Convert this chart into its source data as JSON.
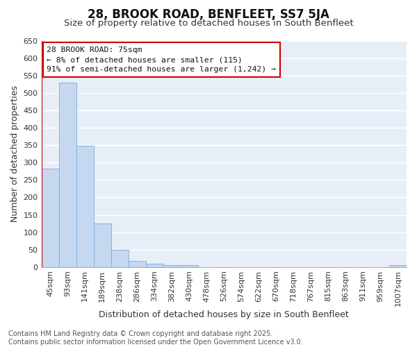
{
  "title": "28, BROOK ROAD, BENFLEET, SS7 5JA",
  "subtitle": "Size of property relative to detached houses in South Benfleet",
  "xlabel": "Distribution of detached houses by size in South Benfleet",
  "ylabel": "Number of detached properties",
  "categories": [
    "45sqm",
    "93sqm",
    "141sqm",
    "189sqm",
    "238sqm",
    "286sqm",
    "334sqm",
    "382sqm",
    "430sqm",
    "478sqm",
    "526sqm",
    "574sqm",
    "622sqm",
    "670sqm",
    "718sqm",
    "767sqm",
    "815sqm",
    "863sqm",
    "911sqm",
    "959sqm",
    "1007sqm"
  ],
  "values": [
    282,
    530,
    348,
    125,
    50,
    18,
    10,
    5,
    5,
    0,
    0,
    0,
    0,
    0,
    0,
    0,
    0,
    0,
    0,
    0,
    5
  ],
  "bar_color": "#c5d8f0",
  "bar_edge_color": "#7aabdc",
  "highlight_color": "#cc0000",
  "annotation_text": "28 BROOK ROAD: 75sqm\n← 8% of detached houses are smaller (115)\n91% of semi-detached houses are larger (1,242) →",
  "ylim_max": 650,
  "yticks": [
    0,
    50,
    100,
    150,
    200,
    250,
    300,
    350,
    400,
    450,
    500,
    550,
    600,
    650
  ],
  "background_color": "#ffffff",
  "plot_bg_color": "#e8eef8",
  "grid_color": "#ffffff",
  "footer_line1": "Contains HM Land Registry data © Crown copyright and database right 2025.",
  "footer_line2": "Contains public sector information licensed under the Open Government Licence v3.0.",
  "title_fontsize": 12,
  "subtitle_fontsize": 9.5,
  "axis_label_fontsize": 9,
  "tick_fontsize": 8,
  "footer_fontsize": 7
}
